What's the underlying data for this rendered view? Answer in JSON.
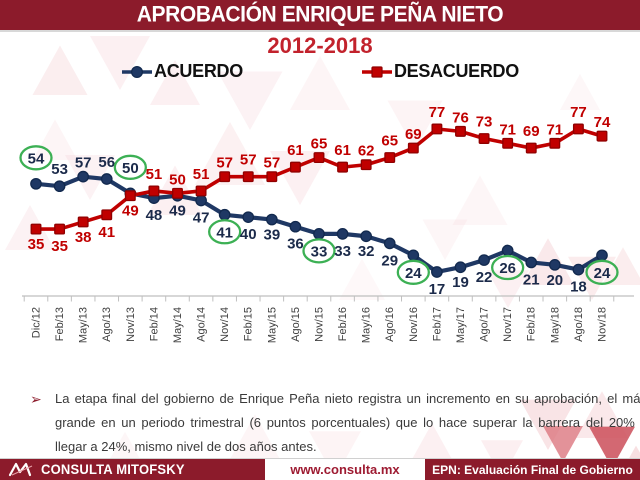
{
  "header": {
    "title": "APROBACIÓN ENRIQUE PEÑA NIETO",
    "subtitle": "2012-2018"
  },
  "legend": [
    {
      "label": "ACUERDO",
      "marker": "circle",
      "color": "#1F3864"
    },
    {
      "label": "DESACUERDO",
      "marker": "square",
      "color": "#C00000"
    }
  ],
  "chart_data": {
    "type": "line",
    "title": "Aprobación Enrique Peña Nieto 2012-2018",
    "categories": [
      "Dic/12",
      "Feb/13",
      "May/13",
      "Ago/13",
      "Nov/13",
      "Feb/14",
      "May/14",
      "Ago/14",
      "Nov/14",
      "Feb/15",
      "May/15",
      "Ago/15",
      "Nov/15",
      "Feb/16",
      "May/16",
      "Ago/16",
      "Nov/16",
      "Feb/17",
      "May/17",
      "Ago/17",
      "Nov/17",
      "Feb/18",
      "May/18",
      "Ago/18",
      "Nov/18"
    ],
    "series": [
      {
        "name": "ACUERDO",
        "marker": "circle",
        "color": "#1F3864",
        "marker_stroke": "#12294E",
        "label_color": "#1B2A4A",
        "values": [
          54,
          53,
          57,
          56,
          50,
          48,
          49,
          47,
          41,
          40,
          39,
          36,
          33,
          33,
          32,
          29,
          24,
          17,
          19,
          22,
          26,
          21,
          20,
          18,
          24
        ],
        "label_before": "above",
        "label_after": "below",
        "flip_after_index": 4,
        "highlighted_indices": [
          0,
          4,
          8,
          12,
          16,
          20,
          24
        ]
      },
      {
        "name": "DESACUERDO",
        "marker": "square",
        "color": "#C00000",
        "marker_stroke": "#8F0000",
        "label_color": "#C00000",
        "values": [
          35,
          35,
          38,
          41,
          49,
          51,
          50,
          51,
          57,
          57,
          57,
          61,
          65,
          61,
          62,
          65,
          69,
          77,
          76,
          73,
          71,
          69,
          71,
          77,
          74
        ],
        "label_before": "below",
        "label_after": "above",
        "flip_after_index": 4,
        "highlighted_indices": []
      }
    ],
    "highlight_color": "#3CB054",
    "axis": {
      "color": "#BFBFBF",
      "tick_label_color": "#3F3F3F",
      "y_axis_visible": false
    },
    "ylim": [
      10,
      85
    ],
    "grid": false,
    "legend_position": "top"
  },
  "note": {
    "bullet": "➢",
    "text": "La etapa final del gobierno de Enrique Peña nieto registra un incremento en su aprobación, el más grande en un periodo trimestral (6 puntos porcentuales) que lo hace superar la barrera del 20% y llegar a 24%, mismo nivel de dos años antes."
  },
  "footer": {
    "brand": "CONSULTA MITOFSKY",
    "url": "www.consulta.mx",
    "right": "EPN: Evaluación Final de Gobierno"
  },
  "colors": {
    "header_bar": "#8C1B2B",
    "subtitle": "#C2222C",
    "acuerdo": "#1F3864",
    "desacuerdo": "#C00000",
    "highlight": "#3CB054",
    "watermark_pink": "#F3C6CB"
  }
}
